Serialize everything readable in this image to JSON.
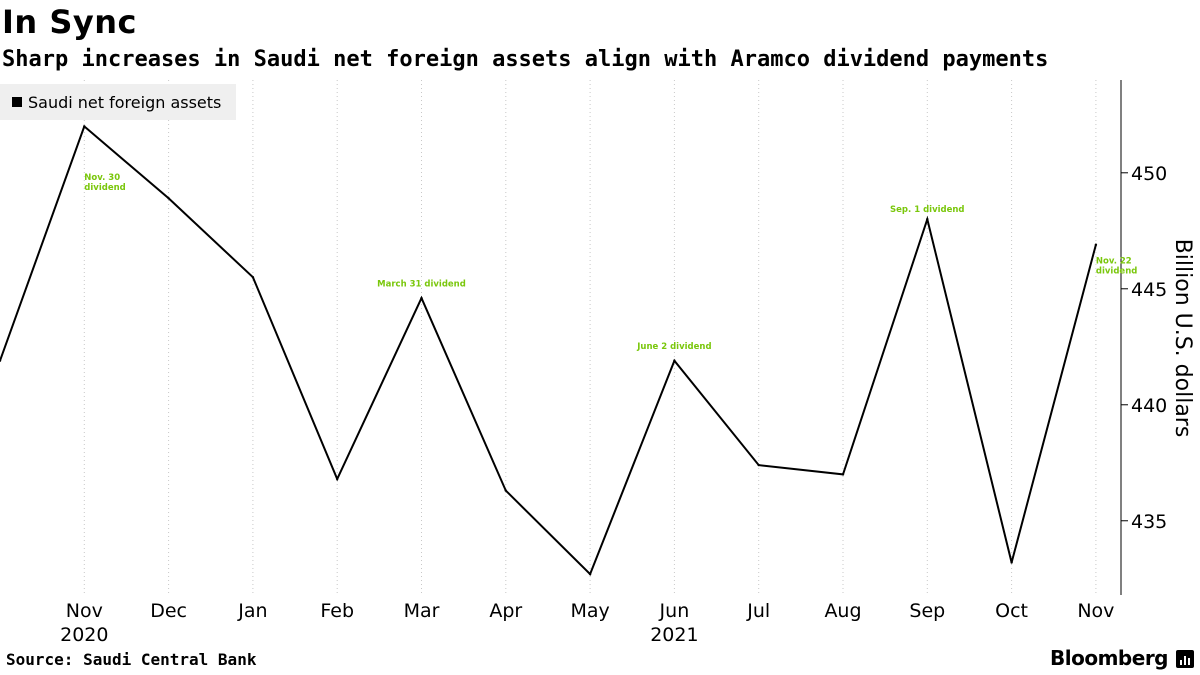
{
  "header": {
    "title": "In Sync",
    "subtitle": "Sharp increases in Saudi net foreign assets align with Aramco dividend payments"
  },
  "footer": {
    "source": "Source: Saudi Central Bank",
    "brand": "Bloomberg"
  },
  "colors": {
    "line": "#000000",
    "annotation": "#7ac70c",
    "grid": "#c8c8c8",
    "legend_bg": "#efefef"
  },
  "chart_data": {
    "type": "line",
    "title": "In Sync",
    "subtitle": "Sharp increases in Saudi net foreign assets align with Aramco dividend payments",
    "xlabel": "",
    "ylabel": "Billion U.S. dollars",
    "ylim": [
      431.8,
      454
    ],
    "yticks": [
      435,
      440,
      445,
      450
    ],
    "grid": {
      "x": true,
      "y": false
    },
    "legend_position": "top-left",
    "x_tick_labels": [
      "Nov",
      "Dec",
      "Jan",
      "Feb",
      "Mar",
      "Apr",
      "May",
      "Jun",
      "Jul",
      "Aug",
      "Sep",
      "Oct",
      "Nov"
    ],
    "year_labels": [
      {
        "label": "2020",
        "at": "2020-11"
      },
      {
        "label": "2021",
        "at": "2021-06"
      }
    ],
    "x": [
      "2020-10",
      "2020-11",
      "2020-12",
      "2021-01",
      "2021-02",
      "2021-03",
      "2021-04",
      "2021-05",
      "2021-06",
      "2021-07",
      "2021-08",
      "2021-09",
      "2021-10",
      "2021-11"
    ],
    "series": [
      {
        "name": "Saudi net foreign assets",
        "values": [
          441.9,
          452.0,
          448.9,
          445.5,
          436.8,
          444.6,
          436.3,
          432.7,
          441.9,
          437.4,
          437.0,
          448.0,
          433.2,
          446.9
        ]
      }
    ],
    "annotations": [
      {
        "text": [
          "Nov. 30",
          "dividend"
        ],
        "x": "2020-11",
        "y": 449.7
      },
      {
        "text": [
          "March 31 dividend"
        ],
        "x": "2021-03",
        "y": 445.1
      },
      {
        "text": [
          "June 2 dividend"
        ],
        "x": "2021-06",
        "y": 442.4
      },
      {
        "text": [
          "Sep. 1 dividend"
        ],
        "x": "2021-09",
        "y": 448.3
      },
      {
        "text": [
          "Nov. 22",
          "dividend"
        ],
        "x": "2021-11",
        "y": 446.1
      }
    ]
  }
}
